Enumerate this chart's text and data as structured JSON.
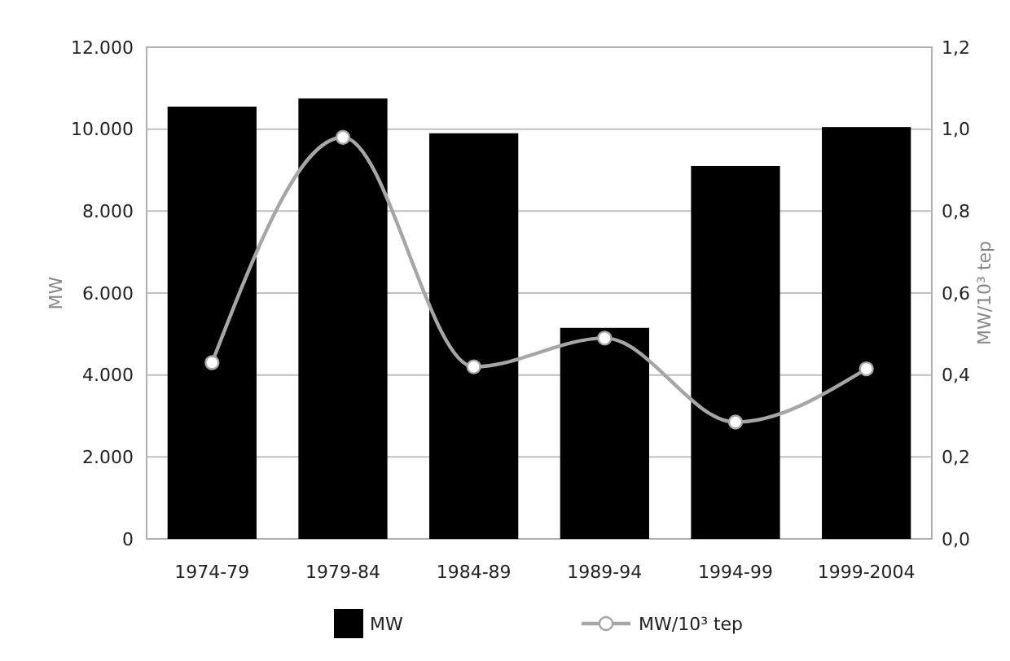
{
  "chart_data": {
    "type": "bar",
    "ylabel": "MW",
    "y2label": "MW/10³ tep",
    "categories": [
      "1974-79",
      "1979-84",
      "1984-89",
      "1989-94",
      "1994-99",
      "1999-2004"
    ],
    "series": [
      {
        "name": "MW",
        "color": "#000000",
        "values": [
          10550,
          10750,
          9900,
          5150,
          9100,
          10050
        ]
      },
      {
        "name": "MW/10³ tep",
        "type": "line",
        "axis": "y2",
        "color": "#a6a6a6",
        "marker": "circle",
        "values": [
          0.43,
          0.98,
          0.42,
          0.49,
          0.285,
          0.415
        ]
      }
    ],
    "ylim": [
      0,
      12000
    ],
    "yticks": [
      {
        "value": 0,
        "label": "0"
      },
      {
        "value": 2000,
        "label": "2.000"
      },
      {
        "value": 4000,
        "label": "4.000"
      },
      {
        "value": 6000,
        "label": "6.000"
      },
      {
        "value": 8000,
        "label": "8.000"
      },
      {
        "value": 10000,
        "label": "10.000"
      },
      {
        "value": 12000,
        "label": "12.000"
      }
    ],
    "y2lim": [
      0,
      1.2
    ],
    "y2ticks": [
      {
        "value": 0,
        "label": "0,0"
      },
      {
        "value": 0.2,
        "label": "0,2"
      },
      {
        "value": 0.4,
        "label": "0,4"
      },
      {
        "value": 0.6,
        "label": "0,6"
      },
      {
        "value": 0.8,
        "label": "0,8"
      },
      {
        "value": 1,
        "label": "1,0"
      },
      {
        "value": 1.2,
        "label": "1,2"
      }
    ],
    "grid": "y",
    "legend": "bottom"
  }
}
